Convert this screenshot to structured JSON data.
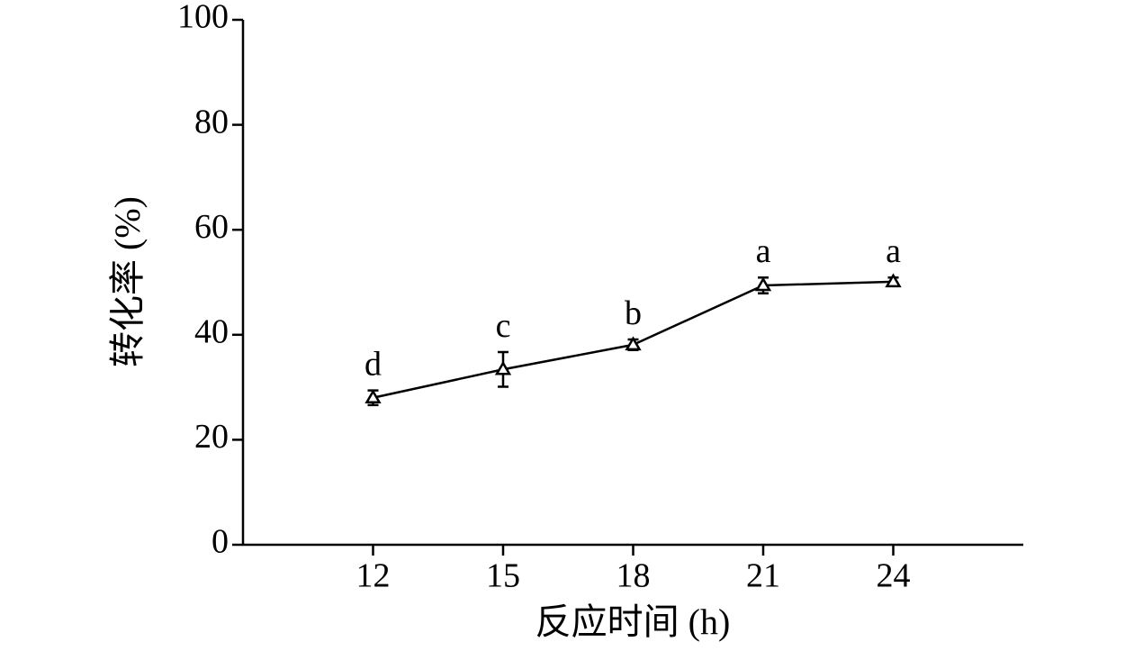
{
  "chart_data": {
    "type": "line",
    "x_label": "反应时间 (h)",
    "y_label": "转化率 (%)",
    "x": [
      12,
      15,
      18,
      21,
      24
    ],
    "series": [
      {
        "color": "#000000",
        "marker": "triangle",
        "values": [
          28,
          33.4,
          38.1,
          49.4,
          50.1
        ],
        "errors": [
          1.4,
          3.3,
          1,
          1.5,
          0.8
        ],
        "significance_labels": [
          "d",
          "c",
          "b",
          "a",
          "a"
        ]
      }
    ],
    "xlim": [
      9,
      27
    ],
    "xticks": [
      12,
      15,
      18,
      21,
      24
    ],
    "ylim": [
      0,
      100
    ],
    "yticks": [
      0,
      20,
      40,
      60,
      80,
      100
    ]
  }
}
